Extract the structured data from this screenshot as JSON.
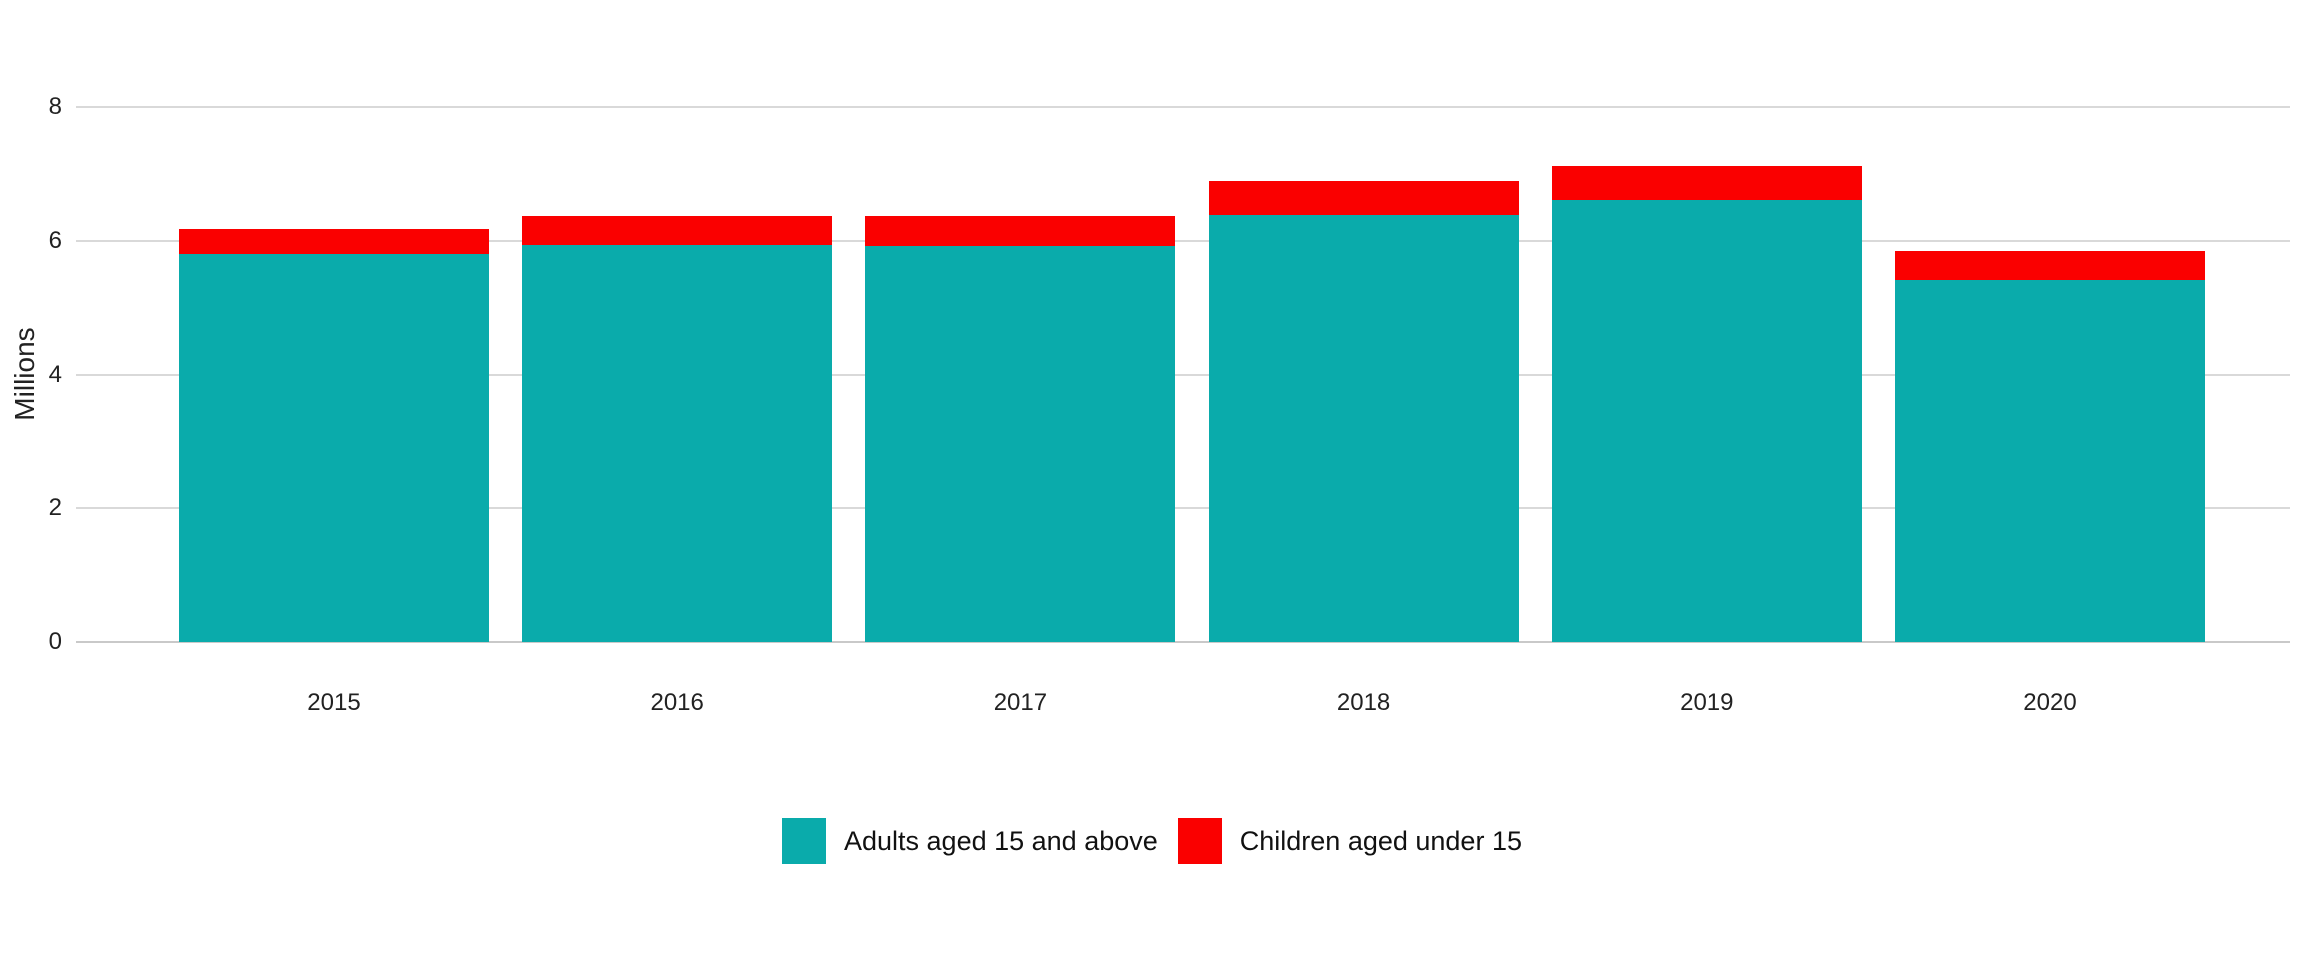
{
  "chart_data": {
    "type": "bar",
    "stacked": true,
    "title": "",
    "xlabel": "",
    "ylabel": "Millions",
    "categories": [
      "2015",
      "2016",
      "2017",
      "2018",
      "2019",
      "2020"
    ],
    "series": [
      {
        "name": "Adults aged 15 and above",
        "color": "#0aabab",
        "values": [
          5.8,
          5.93,
          5.92,
          6.39,
          6.61,
          5.42
        ]
      },
      {
        "name": "Children aged under 15",
        "color": "#fa0000",
        "values": [
          0.38,
          0.44,
          0.45,
          0.5,
          0.51,
          0.42
        ]
      }
    ],
    "ylim": [
      0,
      8
    ],
    "yticks": [
      0,
      2,
      4,
      6,
      8
    ],
    "grid": true,
    "legend_position": "bottom-center",
    "colors": {
      "gridline": "#d9d9d9",
      "axis_text": "#222222",
      "background": "#ffffff"
    }
  }
}
